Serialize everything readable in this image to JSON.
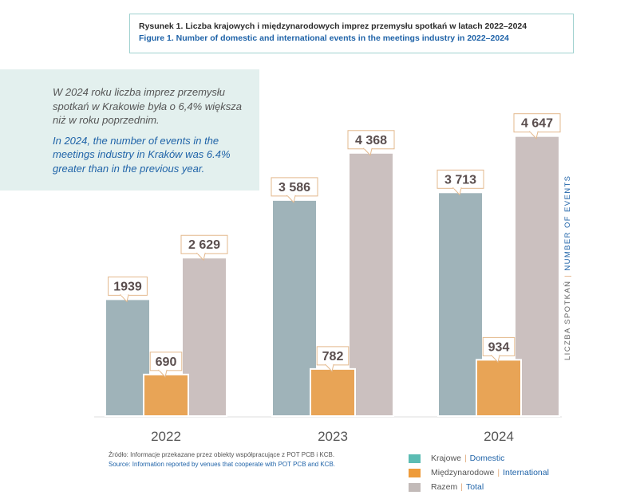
{
  "title": {
    "pl": "Rysunek 1. Liczba krajowych i międzynarodowych imprez przemysłu spotkań w latach 2022–2024",
    "en": "Figure 1. Number of domestic and international events in the meetings industry in 2022–2024"
  },
  "note": {
    "pl": "W 2024 roku liczba imprez przemysłu spotkań w Krakowie była o 6,4% większa niż w roku poprzednim.",
    "en": "In 2024, the number of events in the meetings industry in Kraków was 6.4% greater than in the previous year."
  },
  "axis_label": {
    "pl": "LICZBA SPOTKAŃ",
    "en": "NUMBER OF EVENTS",
    "separator": "|"
  },
  "source": {
    "pl": "Źródło: Informacje przekazane przez obiekty współpracujące z POT PCB i KCB.",
    "en": "Source: Information reported by venues that cooperate with POT PCB and KCB."
  },
  "legend": [
    {
      "pl": "Krajowe",
      "en": "Domestic",
      "color": "#5bbcb3"
    },
    {
      "pl": "Międzynarodowe",
      "en": "International",
      "color": "#ee9b3a"
    },
    {
      "pl": "Razem",
      "en": "Total",
      "color": "#c2bab8"
    }
  ],
  "chart_data": {
    "type": "bar",
    "categories": [
      "2022",
      "2023",
      "2024"
    ],
    "series": [
      {
        "name": "Krajowe | Domestic",
        "values": [
          1939,
          3586,
          3713
        ],
        "labels": [
          "1939",
          "3 586",
          "3 713"
        ],
        "color": "#9fb3b9"
      },
      {
        "name": "Międzynarodowe | International",
        "values": [
          690,
          782,
          934
        ],
        "labels": [
          "690",
          "782",
          "934"
        ],
        "color": "#e8a456"
      },
      {
        "name": "Razem | Total",
        "values": [
          2629,
          4368,
          4647
        ],
        "labels": [
          "2 629",
          "4 368",
          "4 647"
        ],
        "color": "#cbc0bf"
      }
    ],
    "ylim": [
      0,
      5000
    ],
    "grid": false,
    "legend_position": "bottom-right"
  }
}
